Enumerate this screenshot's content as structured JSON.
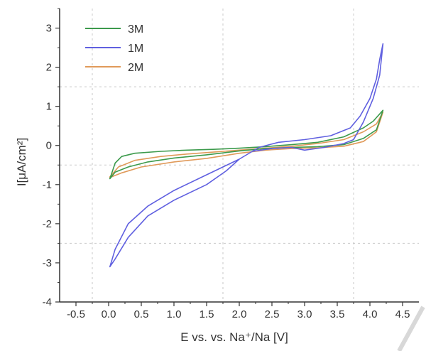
{
  "chart_data": {
    "type": "line",
    "title": "",
    "xlabel": "E vs. vs. Na⁺/Na [V]",
    "ylabel": "I[μA/cm²]",
    "xlim": [
      -0.75,
      4.75
    ],
    "ylim": [
      -4,
      3.5
    ],
    "x_ticks": [
      -0.5,
      0.0,
      0.5,
      1.0,
      1.5,
      2.0,
      2.5,
      3.0,
      3.5,
      4.0,
      4.5
    ],
    "x_tick_labels": [
      "-0.5",
      "0.0",
      "0.5",
      "1.0",
      "1.5",
      "2.0",
      "2.5",
      "3.0",
      "3.5",
      "4.0",
      "4.5"
    ],
    "y_ticks": [
      -4,
      -3,
      -2,
      -1,
      0,
      1,
      2,
      3
    ],
    "y_tick_labels": [
      "-4",
      "-3",
      "-2",
      "-1",
      "0",
      "1",
      "2",
      "3"
    ],
    "grid": "dashed",
    "legend_position": "top-left",
    "series": [
      {
        "name": "3M",
        "color": "#3c9a4c",
        "upper": [
          [
            0.02,
            -0.85
          ],
          [
            0.1,
            -0.45
          ],
          [
            0.2,
            -0.28
          ],
          [
            0.4,
            -0.2
          ],
          [
            0.8,
            -0.15
          ],
          [
            1.2,
            -0.12
          ],
          [
            1.6,
            -0.1
          ],
          [
            2.0,
            -0.07
          ],
          [
            2.4,
            -0.03
          ],
          [
            2.8,
            0.02
          ],
          [
            3.2,
            0.08
          ],
          [
            3.6,
            0.22
          ],
          [
            3.9,
            0.45
          ],
          [
            4.05,
            0.62
          ],
          [
            4.2,
            0.9
          ]
        ],
        "lower": [
          [
            0.02,
            -0.85
          ],
          [
            0.1,
            -0.68
          ],
          [
            0.3,
            -0.55
          ],
          [
            0.6,
            -0.42
          ],
          [
            1.0,
            -0.32
          ],
          [
            1.5,
            -0.24
          ],
          [
            2.0,
            -0.14
          ],
          [
            2.4,
            -0.08
          ],
          [
            2.8,
            -0.05
          ],
          [
            3.2,
            -0.03
          ],
          [
            3.6,
            0.02
          ],
          [
            3.9,
            0.18
          ],
          [
            4.1,
            0.4
          ],
          [
            4.2,
            0.9
          ]
        ]
      },
      {
        "name": "1M",
        "color": "#6060e0",
        "upper": [
          [
            0.02,
            -3.1
          ],
          [
            0.1,
            -2.65
          ],
          [
            0.3,
            -2.0
          ],
          [
            0.6,
            -1.55
          ],
          [
            1.0,
            -1.15
          ],
          [
            1.5,
            -0.75
          ],
          [
            2.0,
            -0.35
          ],
          [
            2.3,
            -0.05
          ],
          [
            2.6,
            0.08
          ],
          [
            3.0,
            0.15
          ],
          [
            3.4,
            0.25
          ],
          [
            3.7,
            0.45
          ],
          [
            3.85,
            0.75
          ],
          [
            4.0,
            1.2
          ],
          [
            4.1,
            1.7
          ],
          [
            4.15,
            2.2
          ],
          [
            4.2,
            2.6
          ]
        ],
        "lower": [
          [
            0.02,
            -3.1
          ],
          [
            0.1,
            -2.9
          ],
          [
            0.3,
            -2.35
          ],
          [
            0.6,
            -1.8
          ],
          [
            1.0,
            -1.4
          ],
          [
            1.5,
            -1.0
          ],
          [
            1.8,
            -0.65
          ],
          [
            2.0,
            -0.35
          ],
          [
            2.2,
            -0.15
          ],
          [
            2.5,
            -0.08
          ],
          [
            2.8,
            -0.05
          ],
          [
            3.0,
            -0.12
          ],
          [
            3.3,
            -0.05
          ],
          [
            3.6,
            0.05
          ],
          [
            3.75,
            0.15
          ],
          [
            3.9,
            0.6
          ],
          [
            4.05,
            1.2
          ],
          [
            4.15,
            1.8
          ],
          [
            4.2,
            2.6
          ]
        ]
      },
      {
        "name": "2M",
        "color": "#e09a5a",
        "upper": [
          [
            0.02,
            -0.8
          ],
          [
            0.15,
            -0.55
          ],
          [
            0.4,
            -0.38
          ],
          [
            0.8,
            -0.28
          ],
          [
            1.2,
            -0.22
          ],
          [
            1.6,
            -0.17
          ],
          [
            2.0,
            -0.12
          ],
          [
            2.4,
            -0.07
          ],
          [
            2.8,
            -0.02
          ],
          [
            3.2,
            0.05
          ],
          [
            3.6,
            0.15
          ],
          [
            3.9,
            0.35
          ],
          [
            4.1,
            0.55
          ],
          [
            4.2,
            0.85
          ]
        ],
        "lower": [
          [
            0.02,
            -0.82
          ],
          [
            0.2,
            -0.7
          ],
          [
            0.5,
            -0.55
          ],
          [
            1.0,
            -0.42
          ],
          [
            1.5,
            -0.33
          ],
          [
            2.0,
            -0.2
          ],
          [
            2.4,
            -0.12
          ],
          [
            2.8,
            -0.08
          ],
          [
            3.2,
            -0.06
          ],
          [
            3.6,
            -0.02
          ],
          [
            3.9,
            0.1
          ],
          [
            4.1,
            0.35
          ],
          [
            4.2,
            0.85
          ]
        ]
      }
    ],
    "legend": [
      {
        "name": "3M",
        "color": "#3c9a4c"
      },
      {
        "name": "1M",
        "color": "#6060e0"
      },
      {
        "name": "2M",
        "color": "#e09a5a"
      }
    ]
  }
}
